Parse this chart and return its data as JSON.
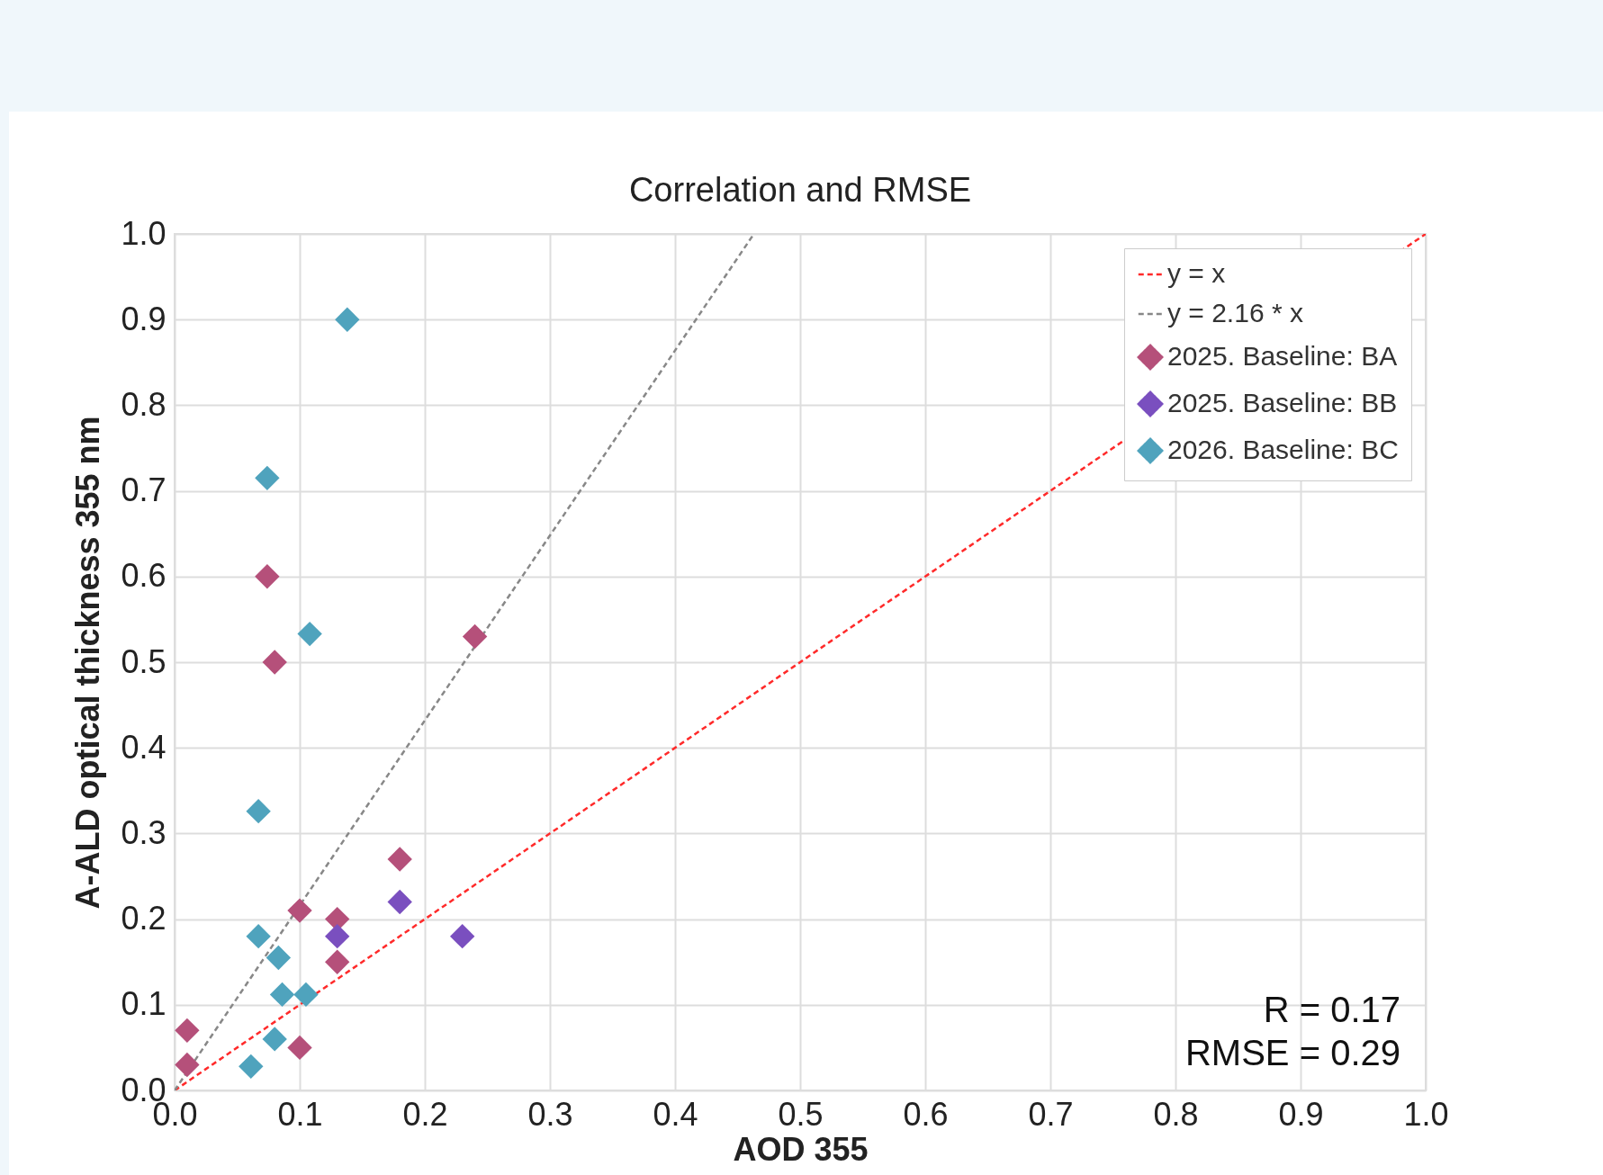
{
  "chart_data": {
    "type": "scatter",
    "title": "Correlation and RMSE",
    "xlabel": "AOD 355",
    "ylabel": "A-ALD optical thickness 355 nm",
    "xlim": [
      0,
      1
    ],
    "ylim": [
      0,
      1
    ],
    "xticks": [
      {
        "value": 0,
        "label": "0.0"
      },
      0.1,
      0.2,
      0.3,
      0.4,
      0.5,
      0.6,
      0.7,
      0.8,
      0.9,
      {
        "value": 1,
        "label": "1.0"
      }
    ],
    "yticks": [
      {
        "value": 0,
        "label": "0.0"
      },
      0.1,
      0.2,
      0.3,
      0.4,
      0.5,
      0.6,
      0.7,
      0.8,
      0.9,
      {
        "value": 1,
        "label": "1.0"
      }
    ],
    "grid": true,
    "legend": "top right",
    "annotations": [
      "R = 0.17",
      "RMSE = 0.29"
    ],
    "series": [
      {
        "name": "y = x",
        "type": "line",
        "line_style": "dashed",
        "color": "#ff2a2a",
        "x": [
          0,
          1
        ],
        "values": [
          0,
          1
        ]
      },
      {
        "name": "y = 2.16 * x",
        "type": "line",
        "line_style": "dashed",
        "color": "#888888",
        "x": [
          0,
          0.463
        ],
        "values": [
          0,
          1
        ]
      },
      {
        "name": "2025. Baseline: BA",
        "marker": "diamond",
        "color": "#b5507a",
        "x": [
          0.01,
          0.01,
          0.074,
          0.08,
          0.24,
          0.18,
          0.1,
          0.13,
          0.13,
          0.1
        ],
        "values": [
          0.07,
          0.03,
          0.6,
          0.5,
          0.53,
          0.27,
          0.21,
          0.2,
          0.15,
          0.05
        ]
      },
      {
        "name": "2025. Baseline: BB",
        "marker": "diamond",
        "color": "#7a4fbf",
        "x": [
          0.13,
          0.18,
          0.23
        ],
        "values": [
          0.18,
          0.22,
          0.18
        ]
      },
      {
        "name": "2026. Baseline: BC",
        "marker": "diamond",
        "color": "#4fa3bd",
        "x": [
          0.138,
          0.074,
          0.108,
          0.067,
          0.067,
          0.083,
          0.086,
          0.105,
          0.08,
          0.061
        ],
        "values": [
          0.9,
          0.715,
          0.533,
          0.326,
          0.18,
          0.155,
          0.112,
          0.112,
          0.06,
          0.028
        ]
      }
    ]
  }
}
